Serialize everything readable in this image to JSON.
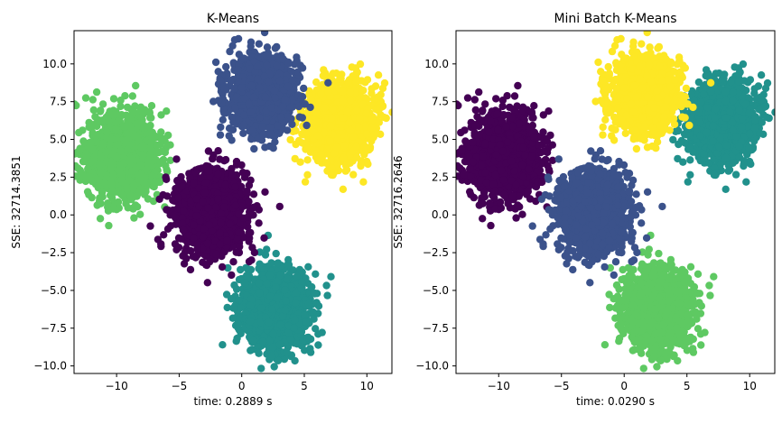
{
  "chart_data": [
    {
      "type": "scatter",
      "title": "K-Means",
      "xlabel": "time: 0.2889 s",
      "ylabel": "SSE: 32714.3851",
      "xlim": [
        -13.4,
        12.0
      ],
      "ylim": [
        -10.5,
        12.2
      ],
      "xticks": [
        -10,
        -5,
        0,
        5,
        10
      ],
      "yticks": [
        -10.0,
        -7.5,
        -5.0,
        -2.5,
        0.0,
        2.5,
        5.0,
        7.5,
        10.0
      ],
      "grid": false,
      "legend": "none",
      "clusters": [
        {
          "center": [
            2.7,
            -6.2
          ],
          "spread": [
            1.3,
            1.3
          ],
          "color": "#21918c"
        },
        {
          "center": [
            -9.6,
            3.9
          ],
          "spread": [
            1.35,
            1.3
          ],
          "color": "#5ec962"
        },
        {
          "center": [
            -2.4,
            0.2
          ],
          "spread": [
            1.35,
            1.35
          ],
          "color": "#440154"
        },
        {
          "center": [
            7.8,
            6.2
          ],
          "spread": [
            1.35,
            1.25
          ],
          "color": "#fde725"
        },
        {
          "center": [
            1.6,
            8.0
          ],
          "spread": [
            1.3,
            1.2
          ],
          "color": "#3b528b"
        }
      ]
    },
    {
      "type": "scatter",
      "title": "Mini Batch K-Means",
      "xlabel": "time: 0.0290 s",
      "ylabel": "SSE: 32716.2646",
      "xlim": [
        -13.4,
        12.0
      ],
      "ylim": [
        -10.5,
        12.2
      ],
      "xticks": [
        -10,
        -5,
        0,
        5,
        10
      ],
      "yticks": [
        -10.0,
        -7.5,
        -5.0,
        -2.5,
        0.0,
        2.5,
        5.0,
        7.5,
        10.0
      ],
      "grid": false,
      "legend": "none",
      "clusters": [
        {
          "center": [
            2.7,
            -6.2
          ],
          "spread": [
            1.3,
            1.3
          ],
          "color": "#5ec962"
        },
        {
          "center": [
            -9.6,
            3.9
          ],
          "spread": [
            1.35,
            1.3
          ],
          "color": "#440154"
        },
        {
          "center": [
            -2.4,
            0.2
          ],
          "spread": [
            1.35,
            1.35
          ],
          "color": "#3b528b"
        },
        {
          "center": [
            7.8,
            6.2
          ],
          "spread": [
            1.35,
            1.25
          ],
          "color": "#21918c"
        },
        {
          "center": [
            1.6,
            8.0
          ],
          "spread": [
            1.3,
            1.2
          ],
          "color": "#fde725"
        }
      ]
    }
  ]
}
